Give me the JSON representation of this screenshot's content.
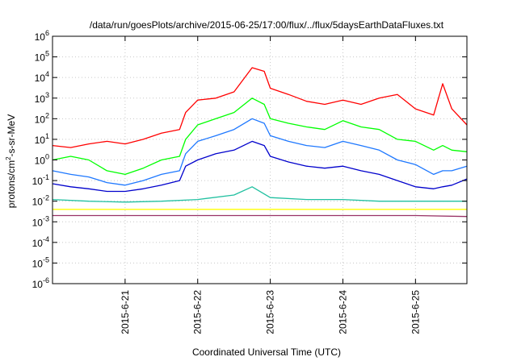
{
  "chart_data": {
    "type": "line",
    "title": "/data/run/goesPlots/archive/2015-06-25/17:00/flux/../flux/5daysEarthDataFluxes.txt",
    "xlabel": "Coordinated Universal Time (UTC)",
    "ylabel_prefix": "protons/cm",
    "ylabel_sup": "2",
    "ylabel_suffix": "-s-sr-MeV",
    "xlim": [
      "2015-06-20T00:00",
      "2015-06-25T17:00"
    ],
    "x_ticks": [
      {
        "label": "2015-6-21",
        "time": "2015-06-21T00:00"
      },
      {
        "label": "2015-6-22",
        "time": "2015-06-22T00:00"
      },
      {
        "label": "2015-6-23",
        "time": "2015-06-23T00:00"
      },
      {
        "label": "2015-6-24",
        "time": "2015-06-24T00:00"
      },
      {
        "label": "2015-6-25",
        "time": "2015-06-25T00:00"
      }
    ],
    "y_scale": "log",
    "ylim": [
      1e-06,
      1000000.0
    ],
    "y_ticks": [
      {
        "base": "10",
        "exp": "-6"
      },
      {
        "base": "10",
        "exp": "-5"
      },
      {
        "base": "10",
        "exp": "-4"
      },
      {
        "base": "10",
        "exp": "-3"
      },
      {
        "base": "10",
        "exp": "-2"
      },
      {
        "base": "10",
        "exp": "-1"
      },
      {
        "base": "10",
        "exp": "0"
      },
      {
        "base": "10",
        "exp": "1"
      },
      {
        "base": "10",
        "exp": "2"
      },
      {
        "base": "10",
        "exp": "3"
      },
      {
        "base": "10",
        "exp": "4"
      },
      {
        "base": "10",
        "exp": "5"
      },
      {
        "base": "10",
        "exp": "6"
      }
    ],
    "grid": true,
    "series": [
      {
        "color": "#ff0000",
        "values": [
          [
            "2015-06-20T00:00",
            5
          ],
          [
            "2015-06-20T06:00",
            4
          ],
          [
            "2015-06-20T12:00",
            6
          ],
          [
            "2015-06-20T18:00",
            8
          ],
          [
            "2015-06-21T00:00",
            6
          ],
          [
            "2015-06-21T06:00",
            10
          ],
          [
            "2015-06-21T12:00",
            20
          ],
          [
            "2015-06-21T18:00",
            30
          ],
          [
            "2015-06-21T20:00",
            200
          ],
          [
            "2015-06-22T00:00",
            800
          ],
          [
            "2015-06-22T06:00",
            1000
          ],
          [
            "2015-06-22T12:00",
            2000
          ],
          [
            "2015-06-22T18:00",
            30000
          ],
          [
            "2015-06-22T22:00",
            20000
          ],
          [
            "2015-06-23T00:00",
            3000
          ],
          [
            "2015-06-23T06:00",
            1500
          ],
          [
            "2015-06-23T12:00",
            700
          ],
          [
            "2015-06-23T18:00",
            500
          ],
          [
            "2015-06-24T00:00",
            800
          ],
          [
            "2015-06-24T06:00",
            500
          ],
          [
            "2015-06-24T12:00",
            1000
          ],
          [
            "2015-06-24T18:00",
            1500
          ],
          [
            "2015-06-25T00:00",
            300
          ],
          [
            "2015-06-25T06:00",
            150
          ],
          [
            "2015-06-25T09:00",
            5000
          ],
          [
            "2015-06-25T12:00",
            300
          ],
          [
            "2015-06-25T17:00",
            50
          ]
        ]
      },
      {
        "color": "#00ff00",
        "values": [
          [
            "2015-06-20T00:00",
            1
          ],
          [
            "2015-06-20T06:00",
            1.5
          ],
          [
            "2015-06-20T12:00",
            1
          ],
          [
            "2015-06-20T18:00",
            0.3
          ],
          [
            "2015-06-21T00:00",
            0.2
          ],
          [
            "2015-06-21T06:00",
            0.4
          ],
          [
            "2015-06-21T12:00",
            1
          ],
          [
            "2015-06-21T18:00",
            1.5
          ],
          [
            "2015-06-21T20:00",
            10
          ],
          [
            "2015-06-22T00:00",
            50
          ],
          [
            "2015-06-22T06:00",
            100
          ],
          [
            "2015-06-22T12:00",
            200
          ],
          [
            "2015-06-22T18:00",
            1000
          ],
          [
            "2015-06-22T22:00",
            500
          ],
          [
            "2015-06-23T00:00",
            100
          ],
          [
            "2015-06-23T06:00",
            60
          ],
          [
            "2015-06-23T12:00",
            40
          ],
          [
            "2015-06-23T18:00",
            30
          ],
          [
            "2015-06-24T00:00",
            80
          ],
          [
            "2015-06-24T06:00",
            40
          ],
          [
            "2015-06-24T12:00",
            30
          ],
          [
            "2015-06-24T18:00",
            10
          ],
          [
            "2015-06-25T00:00",
            8
          ],
          [
            "2015-06-25T06:00",
            3
          ],
          [
            "2015-06-25T09:00",
            5
          ],
          [
            "2015-06-25T12:00",
            3
          ],
          [
            "2015-06-25T17:00",
            2.5
          ]
        ]
      },
      {
        "color": "#1e78ff",
        "values": [
          [
            "2015-06-20T00:00",
            0.3
          ],
          [
            "2015-06-20T06:00",
            0.2
          ],
          [
            "2015-06-20T12:00",
            0.15
          ],
          [
            "2015-06-20T18:00",
            0.08
          ],
          [
            "2015-06-21T00:00",
            0.06
          ],
          [
            "2015-06-21T06:00",
            0.1
          ],
          [
            "2015-06-21T12:00",
            0.2
          ],
          [
            "2015-06-21T18:00",
            0.3
          ],
          [
            "2015-06-21T20:00",
            2
          ],
          [
            "2015-06-22T00:00",
            8
          ],
          [
            "2015-06-22T06:00",
            15
          ],
          [
            "2015-06-22T12:00",
            30
          ],
          [
            "2015-06-22T18:00",
            100
          ],
          [
            "2015-06-22T22:00",
            60
          ],
          [
            "2015-06-23T00:00",
            15
          ],
          [
            "2015-06-23T06:00",
            8
          ],
          [
            "2015-06-23T12:00",
            5
          ],
          [
            "2015-06-23T18:00",
            4
          ],
          [
            "2015-06-24T00:00",
            8
          ],
          [
            "2015-06-24T06:00",
            5
          ],
          [
            "2015-06-24T12:00",
            3
          ],
          [
            "2015-06-24T18:00",
            1
          ],
          [
            "2015-06-25T00:00",
            0.6
          ],
          [
            "2015-06-25T06:00",
            0.2
          ],
          [
            "2015-06-25T09:00",
            0.3
          ],
          [
            "2015-06-25T12:00",
            0.3
          ],
          [
            "2015-06-25T17:00",
            0.5
          ]
        ]
      },
      {
        "color": "#0000cc",
        "values": [
          [
            "2015-06-20T00:00",
            0.07
          ],
          [
            "2015-06-20T06:00",
            0.05
          ],
          [
            "2015-06-20T12:00",
            0.04
          ],
          [
            "2015-06-20T18:00",
            0.03
          ],
          [
            "2015-06-21T00:00",
            0.03
          ],
          [
            "2015-06-21T06:00",
            0.04
          ],
          [
            "2015-06-21T12:00",
            0.06
          ],
          [
            "2015-06-21T18:00",
            0.1
          ],
          [
            "2015-06-21T20:00",
            0.5
          ],
          [
            "2015-06-22T00:00",
            1
          ],
          [
            "2015-06-22T06:00",
            2
          ],
          [
            "2015-06-22T12:00",
            3
          ],
          [
            "2015-06-22T18:00",
            8
          ],
          [
            "2015-06-22T22:00",
            5
          ],
          [
            "2015-06-23T00:00",
            1.5
          ],
          [
            "2015-06-23T06:00",
            0.8
          ],
          [
            "2015-06-23T12:00",
            0.5
          ],
          [
            "2015-06-23T18:00",
            0.4
          ],
          [
            "2015-06-24T00:00",
            0.5
          ],
          [
            "2015-06-24T06:00",
            0.3
          ],
          [
            "2015-06-24T12:00",
            0.2
          ],
          [
            "2015-06-24T18:00",
            0.1
          ],
          [
            "2015-06-25T00:00",
            0.05
          ],
          [
            "2015-06-25T06:00",
            0.04
          ],
          [
            "2015-06-25T09:00",
            0.05
          ],
          [
            "2015-06-25T12:00",
            0.06
          ],
          [
            "2015-06-25T17:00",
            0.12
          ]
        ]
      },
      {
        "color": "#20c0a0",
        "values": [
          [
            "2015-06-20T00:00",
            0.012
          ],
          [
            "2015-06-20T12:00",
            0.01
          ],
          [
            "2015-06-21T00:00",
            0.009
          ],
          [
            "2015-06-21T12:00",
            0.01
          ],
          [
            "2015-06-22T00:00",
            0.012
          ],
          [
            "2015-06-22T12:00",
            0.02
          ],
          [
            "2015-06-22T18:00",
            0.05
          ],
          [
            "2015-06-23T00:00",
            0.015
          ],
          [
            "2015-06-23T12:00",
            0.012
          ],
          [
            "2015-06-24T00:00",
            0.012
          ],
          [
            "2015-06-24T12:00",
            0.01
          ],
          [
            "2015-06-25T00:00",
            0.01
          ],
          [
            "2015-06-25T17:00",
            0.01
          ]
        ]
      },
      {
        "color": "#ffff00",
        "values": [
          [
            "2015-06-20T00:00",
            0.004
          ],
          [
            "2015-06-21T00:00",
            0.004
          ],
          [
            "2015-06-22T00:00",
            0.004
          ],
          [
            "2015-06-23T00:00",
            0.004
          ],
          [
            "2015-06-24T00:00",
            0.004
          ],
          [
            "2015-06-25T00:00",
            0.004
          ],
          [
            "2015-06-25T17:00",
            0.004
          ]
        ]
      },
      {
        "color": "#993366",
        "values": [
          [
            "2015-06-20T00:00",
            0.002
          ],
          [
            "2015-06-21T00:00",
            0.002
          ],
          [
            "2015-06-22T00:00",
            0.002
          ],
          [
            "2015-06-23T00:00",
            0.002
          ],
          [
            "2015-06-24T00:00",
            0.002
          ],
          [
            "2015-06-25T00:00",
            0.002
          ],
          [
            "2015-06-25T17:00",
            0.0018
          ]
        ]
      }
    ]
  }
}
